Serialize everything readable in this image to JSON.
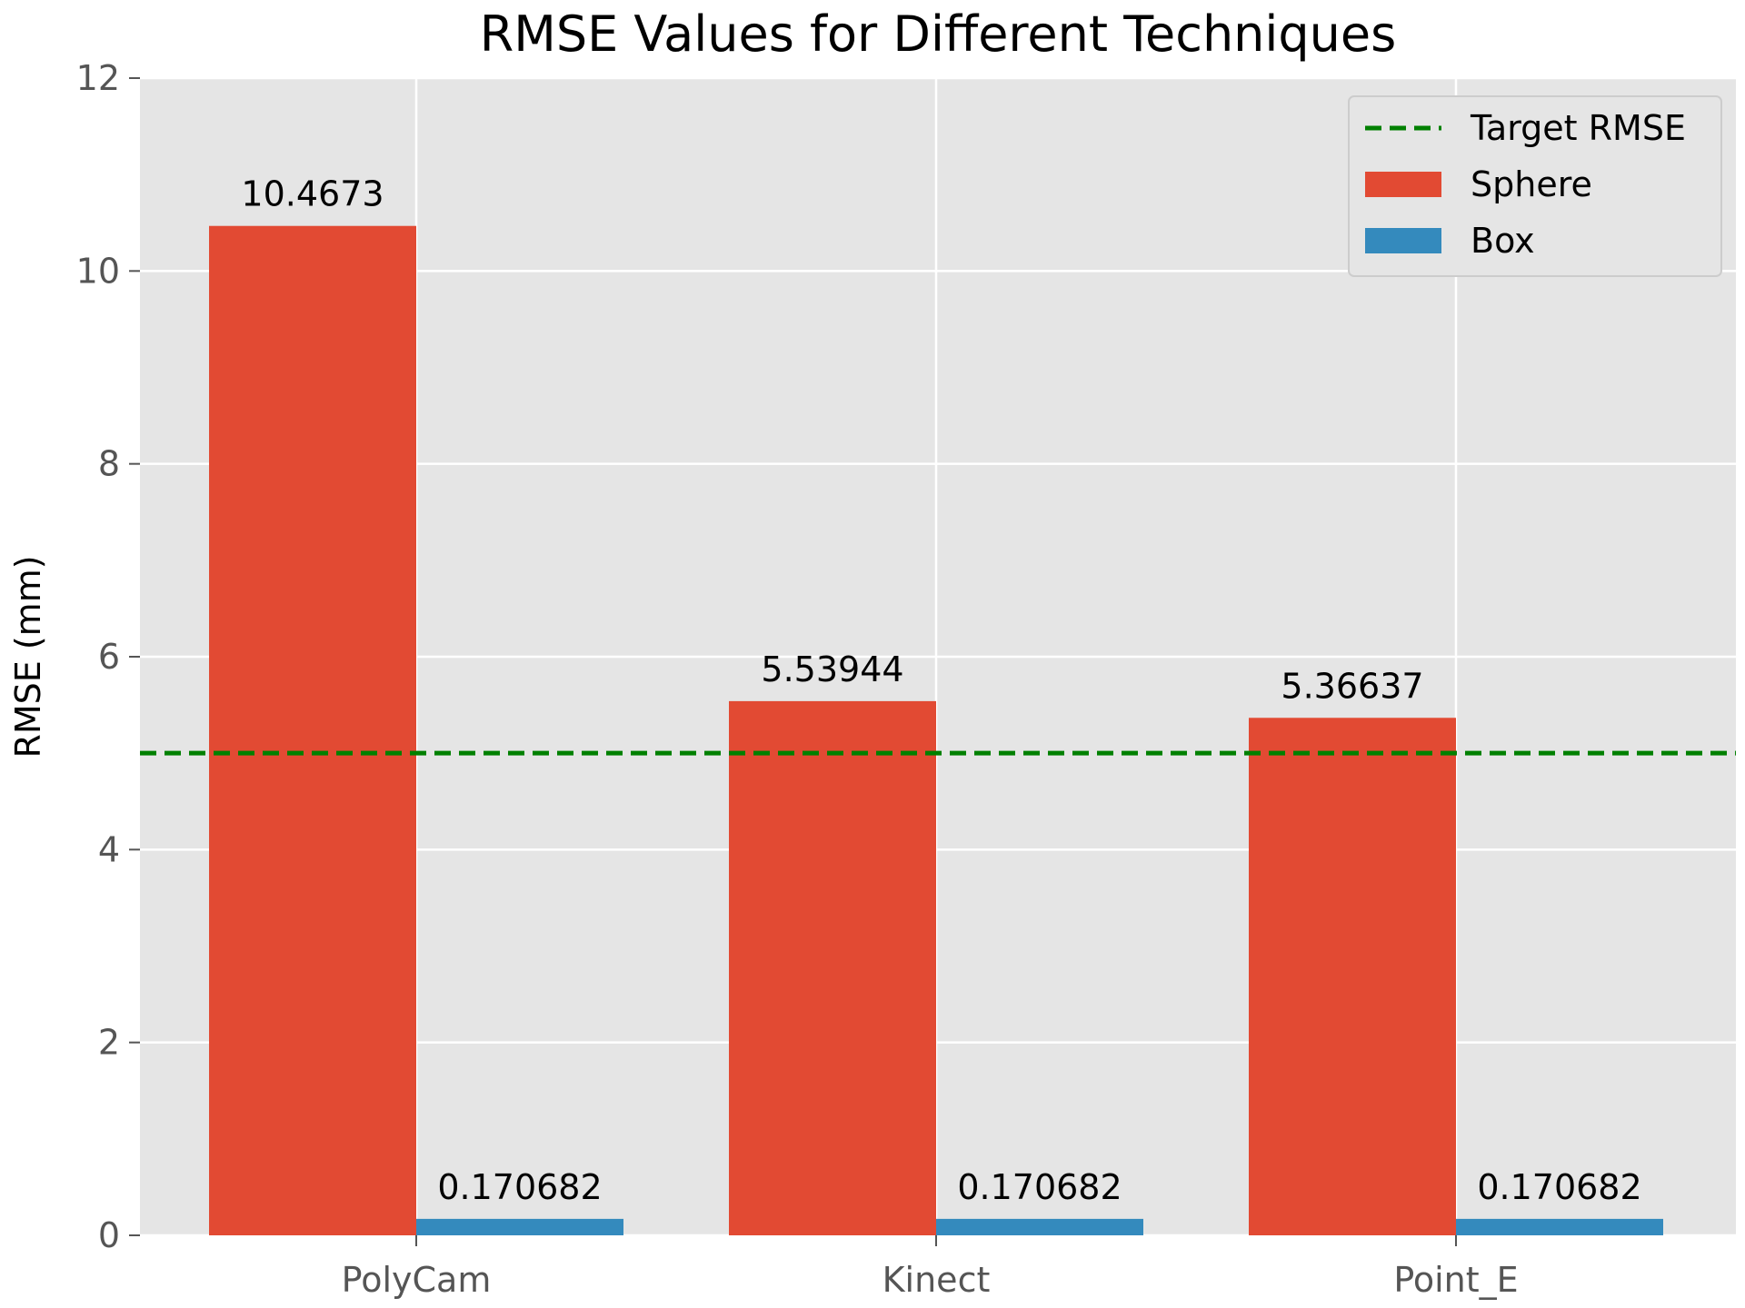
{
  "chart_data": {
    "type": "bar",
    "title": "RMSE Values for Different Techniques",
    "xlabel": "",
    "ylabel": "RMSE (mm)",
    "ylim": [
      0,
      12
    ],
    "yticks": [
      0,
      2,
      4,
      6,
      8,
      10,
      12
    ],
    "categories": [
      "PolyCam",
      "Kinect",
      "Point_E"
    ],
    "series": [
      {
        "name": "Sphere",
        "color": "#E24A33",
        "values": [
          10.4673,
          5.53944,
          5.36637
        ],
        "labels": [
          "10.4673",
          "5.53944",
          "5.36637"
        ]
      },
      {
        "name": "Box",
        "color": "#348ABD",
        "values": [
          0.170682,
          0.170682,
          0.170682
        ],
        "labels": [
          "0.170682",
          "0.170682",
          "0.170682"
        ]
      }
    ],
    "reference_line": {
      "name": "Target RMSE",
      "value": 5,
      "color": "#008000",
      "style": "dashed"
    },
    "grid": true,
    "legend_position": "top-right",
    "background": "#E5E5E5"
  }
}
